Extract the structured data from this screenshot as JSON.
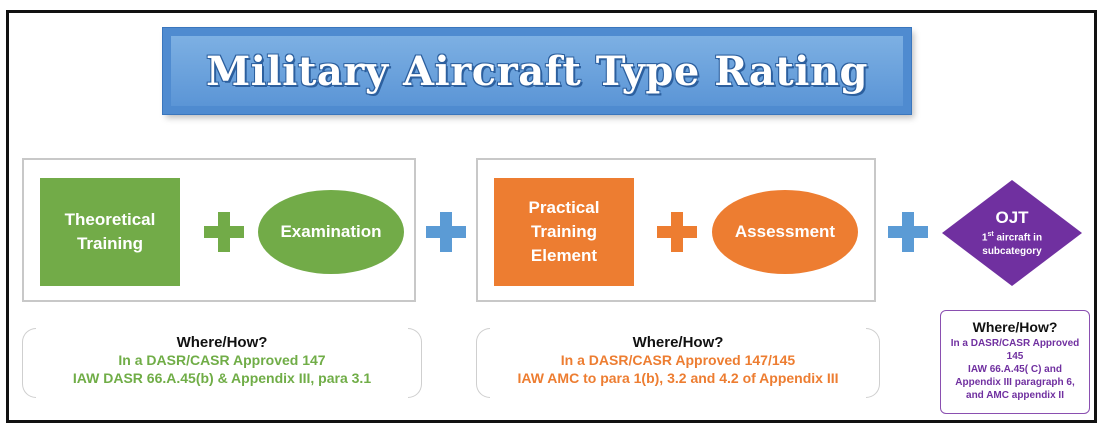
{
  "title": "Military Aircraft Type Rating",
  "colors": {
    "green": "#72ab48",
    "orange": "#ed7d31",
    "blue_plus": "#5b9bd5",
    "purple": "#7030a0",
    "purple_text": "#7030a0",
    "green_text": "#70ad47",
    "orange_text": "#ed7d31"
  },
  "nodes": {
    "theoretical": "Theoretical Training",
    "examination": "Examination",
    "practical": "Practical Training Element",
    "assessment": "Assessment",
    "ojt_title": "OJT",
    "ojt_sub_pre": "1",
    "ojt_sub_sup": "st",
    "ojt_sub_post": " aircraft in subcategory"
  },
  "where_how": {
    "left": {
      "title": "Where/How?",
      "line1": "In a DASR/CASR Approved 147",
      "line2": "IAW DASR 66.A.45(b) & Appendix III, para 3.1"
    },
    "middle": {
      "title": "Where/How?",
      "line1": "In a DASR/CASR Approved 147/145",
      "line2": "IAW AMC to para 1(b), 3.2 and 4.2 of Appendix III"
    },
    "right": {
      "title": "Where/How?",
      "line1": "In a DASR/CASR Approved 145",
      "line2": "IAW 66.A.45( C) and Appendix III paragraph 6, and AMC appendix II"
    }
  }
}
